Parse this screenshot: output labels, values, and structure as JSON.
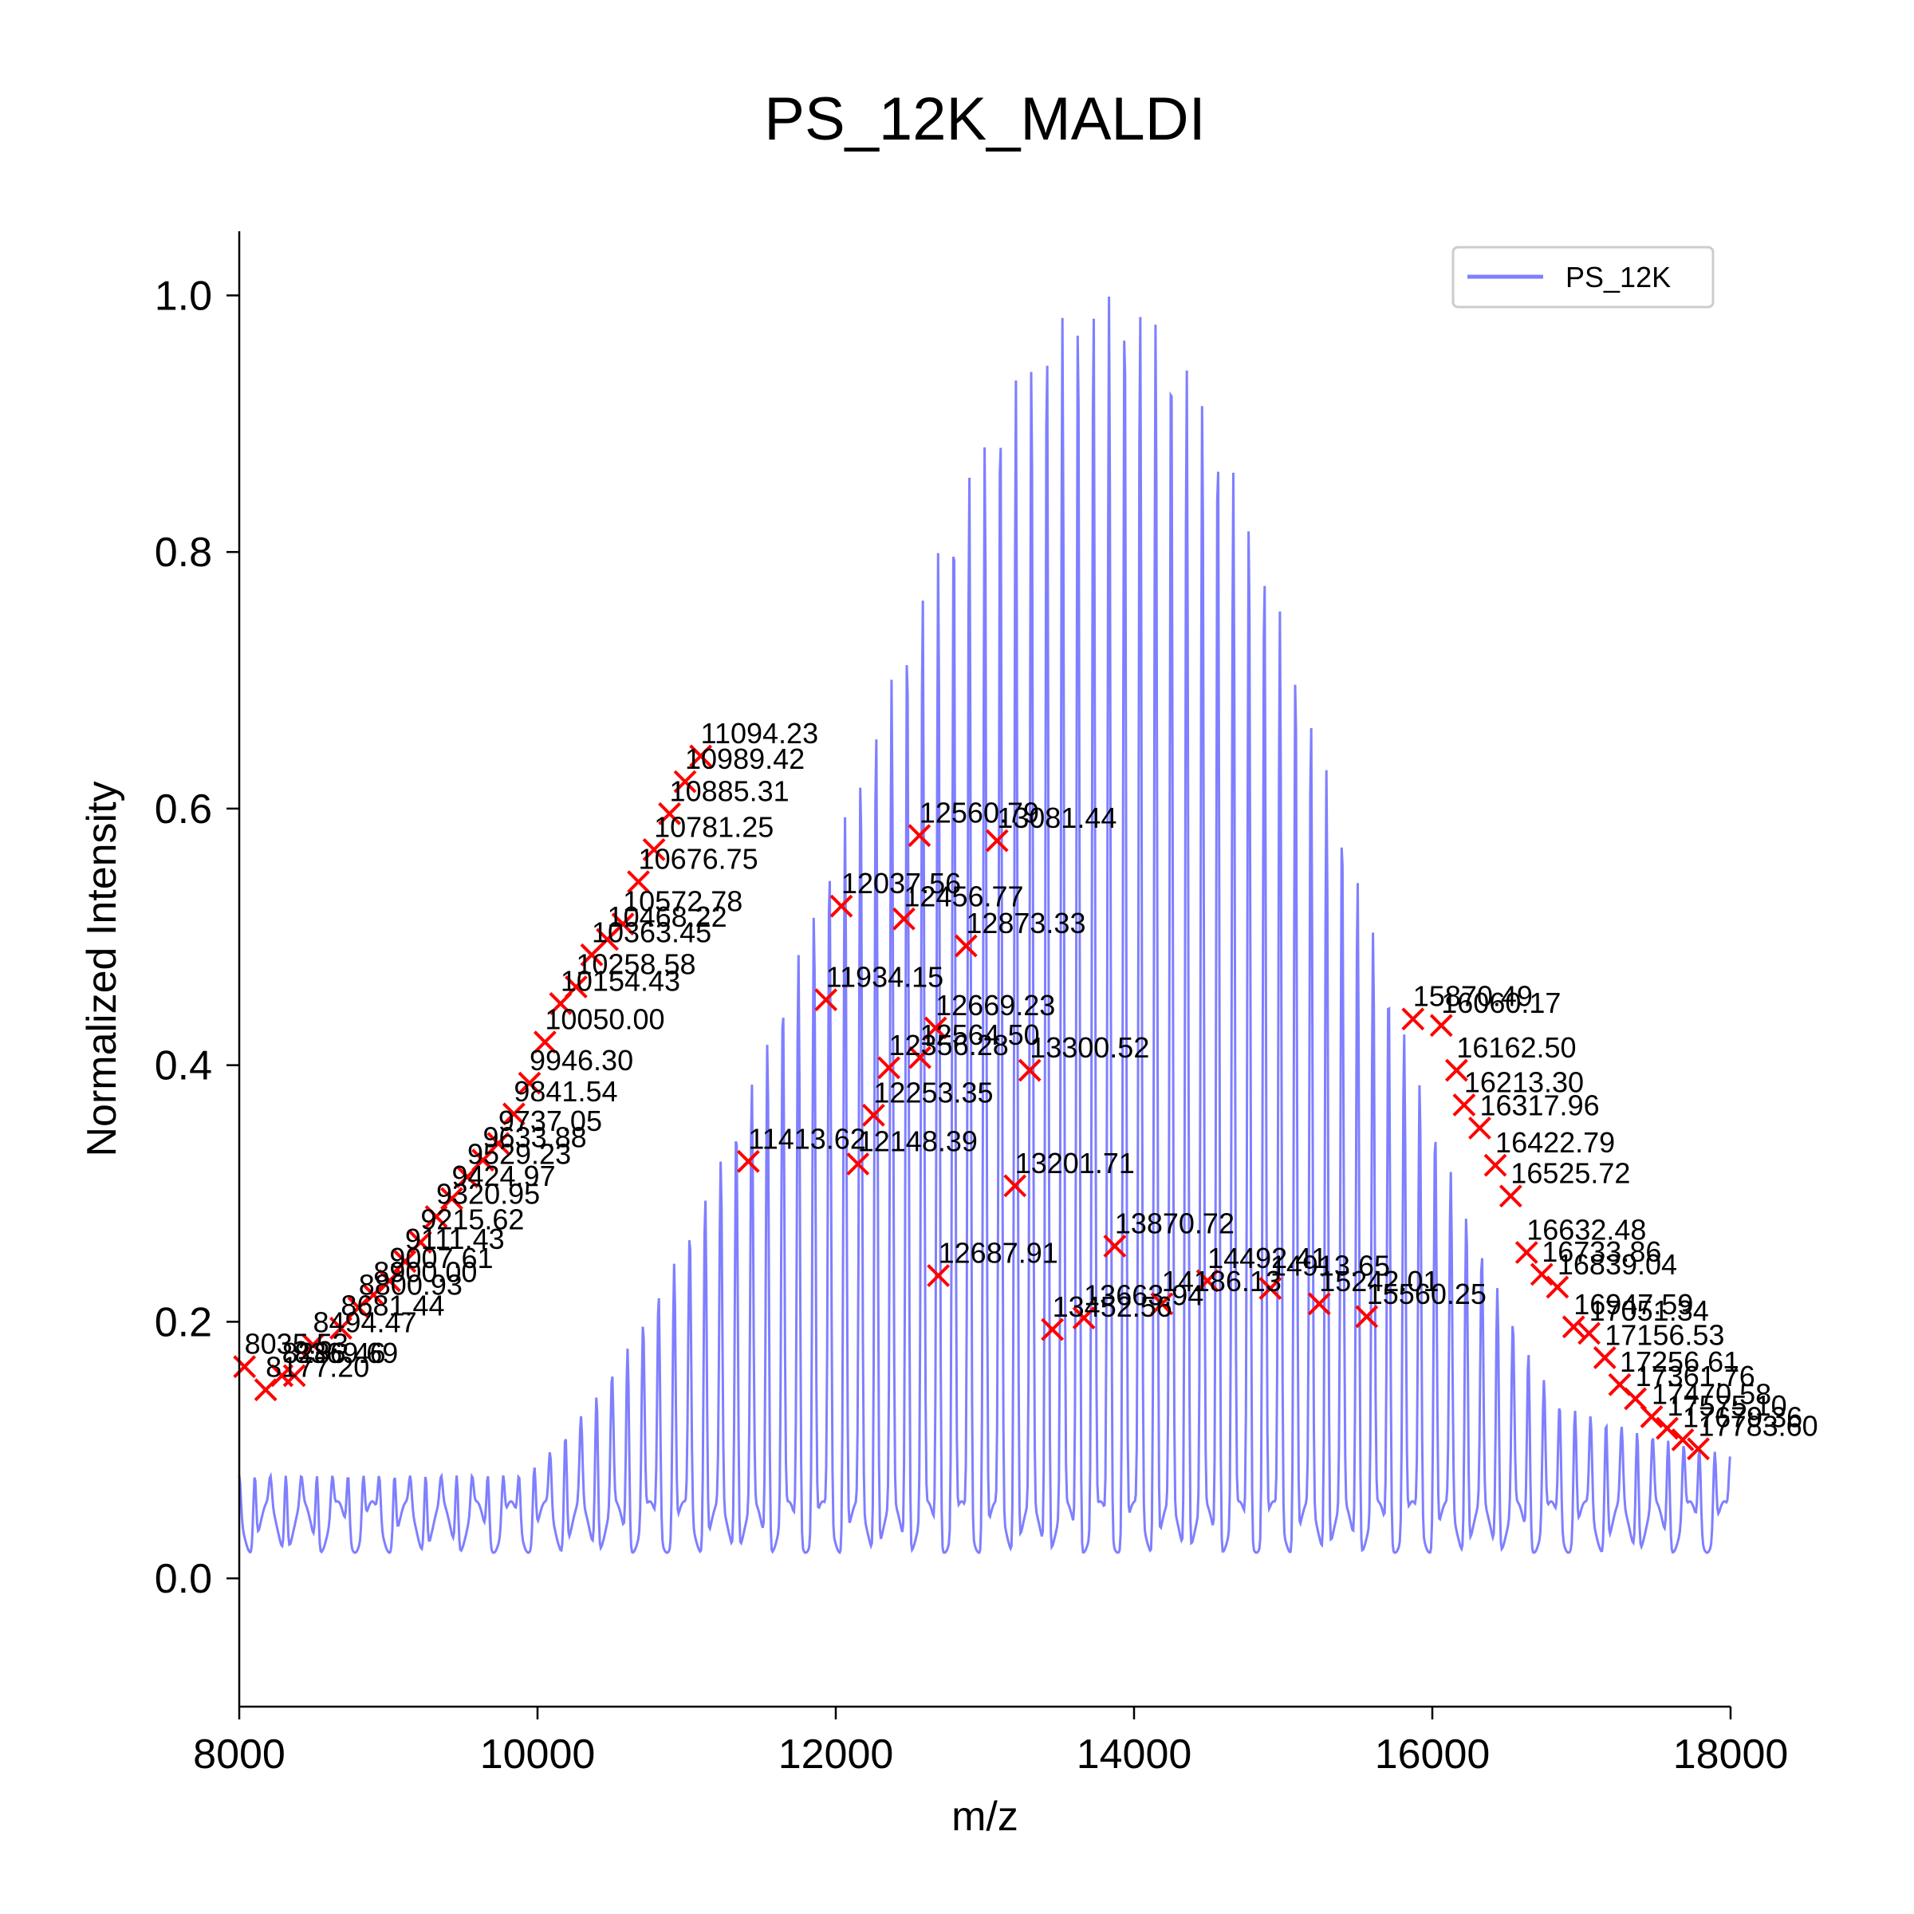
{
  "chart_data": {
    "type": "line",
    "title": "PS_12K_MALDI",
    "xlabel": "m/z",
    "ylabel": "Normalized Intensity",
    "xlim": [
      8000,
      18000
    ],
    "ylim": [
      -0.1,
      1.05
    ],
    "xticks": [
      8000,
      10000,
      12000,
      14000,
      16000,
      18000
    ],
    "xtick_labels": [
      "8000",
      "10000",
      "12000",
      "14000",
      "16000",
      "18000"
    ],
    "yticks": [
      0.0,
      0.2,
      0.4,
      0.6,
      0.8,
      1.0
    ],
    "ytick_labels": [
      "0.0",
      "0.2",
      "0.4",
      "0.6",
      "0.8",
      "1.0"
    ],
    "grid": false,
    "legend": {
      "position": "top-right",
      "entries": [
        {
          "name": "PS_12K",
          "color": "#7f7fff"
        }
      ]
    },
    "series": [
      {
        "name": "PS_12K",
        "color": "#7f7fff",
        "repeat_spacing": 104.15,
        "x_start": 8000,
        "x_end": 18000,
        "envelope_peak_mz": 13850,
        "envelope_max": 1.0,
        "baseline": 0.04
      }
    ],
    "marker_color": "#ff0000",
    "marker_style": "x",
    "peaks": [
      {
        "mz": 8035.53,
        "y": 0.165,
        "label": "8035.53"
      },
      {
        "mz": 8177.2,
        "y": 0.147,
        "label": "8177.20"
      },
      {
        "mz": 8286.46,
        "y": 0.158,
        "label": "8286.46"
      },
      {
        "mz": 8369.69,
        "y": 0.158,
        "label": "8369.69"
      },
      {
        "mz": 8494.47,
        "y": 0.182,
        "label": "8494.47"
      },
      {
        "mz": 8681.44,
        "y": 0.195,
        "label": "8681.44"
      },
      {
        "mz": 8800.93,
        "y": 0.211,
        "label": "8800.93"
      },
      {
        "mz": 8900.0,
        "y": 0.221,
        "label": "8900.00"
      },
      {
        "mz": 9007.61,
        "y": 0.232,
        "label": "9007.61"
      },
      {
        "mz": 9111.43,
        "y": 0.247,
        "label": "9111.43"
      },
      {
        "mz": 9215.62,
        "y": 0.262,
        "label": "9215.62"
      },
      {
        "mz": 9320.95,
        "y": 0.282,
        "label": "9320.95"
      },
      {
        "mz": 9424.97,
        "y": 0.296,
        "label": "9424.97"
      },
      {
        "mz": 9529.23,
        "y": 0.313,
        "label": "9529.23"
      },
      {
        "mz": 9633.88,
        "y": 0.326,
        "label": "9633.88"
      },
      {
        "mz": 9737.05,
        "y": 0.339,
        "label": "9737.05"
      },
      {
        "mz": 9841.54,
        "y": 0.362,
        "label": "9841.54"
      },
      {
        "mz": 9946.3,
        "y": 0.386,
        "label": "9946.30"
      },
      {
        "mz": 10050.0,
        "y": 0.418,
        "label": "10050.00"
      },
      {
        "mz": 10154.43,
        "y": 0.448,
        "label": "10154.43"
      },
      {
        "mz": 10258.58,
        "y": 0.461,
        "label": "10258.58"
      },
      {
        "mz": 10363.45,
        "y": 0.486,
        "label": "10363.45"
      },
      {
        "mz": 10468.22,
        "y": 0.498,
        "label": "10468.22"
      },
      {
        "mz": 10572.78,
        "y": 0.51,
        "label": "10572.78"
      },
      {
        "mz": 10676.75,
        "y": 0.543,
        "label": "10676.75"
      },
      {
        "mz": 10781.25,
        "y": 0.568,
        "label": "10781.25"
      },
      {
        "mz": 10885.31,
        "y": 0.596,
        "label": "10885.31"
      },
      {
        "mz": 10989.42,
        "y": 0.621,
        "label": "10989.42"
      },
      {
        "mz": 11094.23,
        "y": 0.641,
        "label": "11094.23"
      },
      {
        "mz": 11413.62,
        "y": 0.325,
        "label": "11413.62"
      },
      {
        "mz": 11934.15,
        "y": 0.451,
        "label": "11934.15"
      },
      {
        "mz": 12037.56,
        "y": 0.524,
        "label": "12037.56"
      },
      {
        "mz": 12148.39,
        "y": 0.323,
        "label": "12148.39"
      },
      {
        "mz": 12253.35,
        "y": 0.361,
        "label": "12253.35"
      },
      {
        "mz": 12356.28,
        "y": 0.398,
        "label": "12356.28"
      },
      {
        "mz": 12456.77,
        "y": 0.514,
        "label": "12456.77"
      },
      {
        "mz": 12560.79,
        "y": 0.579,
        "label": "12560.79"
      },
      {
        "mz": 12564.5,
        "y": 0.406,
        "label": "12564.50"
      },
      {
        "mz": 12669.23,
        "y": 0.429,
        "label": "12669.23"
      },
      {
        "mz": 12687.91,
        "y": 0.236,
        "label": "12687.91"
      },
      {
        "mz": 12873.33,
        "y": 0.493,
        "label": "12873.33"
      },
      {
        "mz": 13081.44,
        "y": 0.575,
        "label": "13081.44"
      },
      {
        "mz": 13201.71,
        "y": 0.306,
        "label": "13201.71"
      },
      {
        "mz": 13300.52,
        "y": 0.396,
        "label": "13300.52"
      },
      {
        "mz": 13452.56,
        "y": 0.194,
        "label": "13452.56"
      },
      {
        "mz": 13663.94,
        "y": 0.203,
        "label": "13663.94"
      },
      {
        "mz": 13870.72,
        "y": 0.259,
        "label": "13870.72"
      },
      {
        "mz": 14186.13,
        "y": 0.214,
        "label": "14186.13"
      },
      {
        "mz": 14492.41,
        "y": 0.232,
        "label": "14492.41"
      },
      {
        "mz": 14913.65,
        "y": 0.226,
        "label": "14913.65"
      },
      {
        "mz": 15242.01,
        "y": 0.214,
        "label": "15242.01"
      },
      {
        "mz": 15560.25,
        "y": 0.204,
        "label": "15560.25"
      },
      {
        "mz": 15870.49,
        "y": 0.436,
        "label": "15870.49"
      },
      {
        "mz": 16060.17,
        "y": 0.431,
        "label": "16060.17"
      },
      {
        "mz": 16162.5,
        "y": 0.396,
        "label": "16162.50"
      },
      {
        "mz": 16213.3,
        "y": 0.369,
        "label": "16213.30"
      },
      {
        "mz": 16317.96,
        "y": 0.351,
        "label": "16317.96"
      },
      {
        "mz": 16422.79,
        "y": 0.322,
        "label": "16422.79"
      },
      {
        "mz": 16525.72,
        "y": 0.298,
        "label": "16525.72"
      },
      {
        "mz": 16632.48,
        "y": 0.254,
        "label": "16632.48"
      },
      {
        "mz": 16733.86,
        "y": 0.237,
        "label": "16733.86"
      },
      {
        "mz": 16839.04,
        "y": 0.227,
        "label": "16839.04"
      },
      {
        "mz": 16947.59,
        "y": 0.196,
        "label": "16947.59"
      },
      {
        "mz": 17051.34,
        "y": 0.191,
        "label": "17051.34"
      },
      {
        "mz": 17156.53,
        "y": 0.172,
        "label": "17156.53"
      },
      {
        "mz": 17256.61,
        "y": 0.151,
        "label": "17256.61"
      },
      {
        "mz": 17361.76,
        "y": 0.14,
        "label": "17361.76"
      },
      {
        "mz": 17470.58,
        "y": 0.126,
        "label": "17470.58"
      },
      {
        "mz": 17575.1,
        "y": 0.117,
        "label": "17575.10"
      },
      {
        "mz": 17679.36,
        "y": 0.108,
        "label": "17679.36"
      },
      {
        "mz": 17783.6,
        "y": 0.101,
        "label": "17783.60"
      }
    ]
  }
}
